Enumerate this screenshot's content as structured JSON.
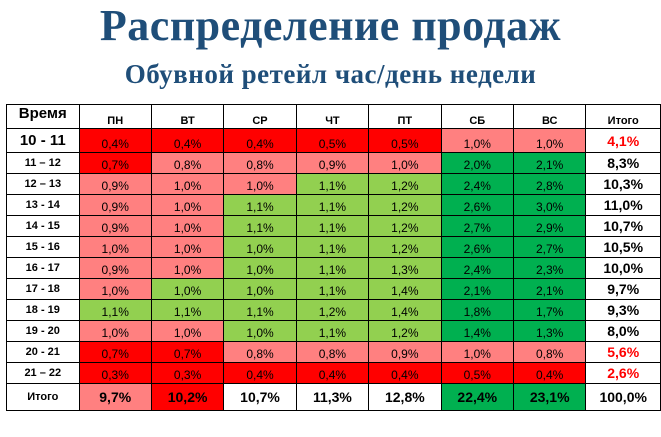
{
  "title": "Распределение продаж",
  "subtitle": "Обувной ретейл час/день недели",
  "table": {
    "corner": "Время",
    "headers": [
      "ПН",
      "ВТ",
      "СР",
      "ЧТ",
      "ПТ",
      "СБ",
      "ВС",
      "Итого"
    ],
    "rows": [
      {
        "label": "10 - 11",
        "values": [
          "0,4%",
          "0,4%",
          "0,4%",
          "0,5%",
          "0,5%",
          "1,0%",
          "1,0%"
        ],
        "colors": [
          "red",
          "red",
          "red",
          "red",
          "red",
          "pink",
          "pink"
        ],
        "total": "4,1%",
        "total_color": "red"
      },
      {
        "label": "11 – 12",
        "values": [
          "0,7%",
          "0,8%",
          "0,8%",
          "0,9%",
          "1,0%",
          "2,0%",
          "2,1%"
        ],
        "colors": [
          "red",
          "pink",
          "pink",
          "pink",
          "pink",
          "dgreen",
          "dgreen"
        ],
        "total": "8,3%",
        "total_color": "black"
      },
      {
        "label": "12 – 13",
        "values": [
          "0,9%",
          "1,0%",
          "1,0%",
          "1,1%",
          "1,2%",
          "2,4%",
          "2,8%"
        ],
        "colors": [
          "pink",
          "pink",
          "pink",
          "lgreen",
          "lgreen",
          "dgreen",
          "dgreen"
        ],
        "total": "10,3%",
        "total_color": "black"
      },
      {
        "label": "13 - 14",
        "values": [
          "0,9%",
          "1,0%",
          "1,1%",
          "1,1%",
          "1,2%",
          "2,6%",
          "3,0%"
        ],
        "colors": [
          "pink",
          "pink",
          "lgreen",
          "lgreen",
          "lgreen",
          "dgreen",
          "dgreen"
        ],
        "total": "11,0%",
        "total_color": "black"
      },
      {
        "label": "14 - 15",
        "values": [
          "0,9%",
          "1,0%",
          "1,1%",
          "1,1%",
          "1,2%",
          "2,7%",
          "2,9%"
        ],
        "colors": [
          "pink",
          "pink",
          "lgreen",
          "lgreen",
          "lgreen",
          "dgreen",
          "dgreen"
        ],
        "total": "10,7%",
        "total_color": "black"
      },
      {
        "label": "15 - 16",
        "values": [
          "1,0%",
          "1,0%",
          "1,0%",
          "1,1%",
          "1,2%",
          "2,6%",
          "2,7%"
        ],
        "colors": [
          "pink",
          "pink",
          "lgreen",
          "lgreen",
          "lgreen",
          "dgreen",
          "dgreen"
        ],
        "total": "10,5%",
        "total_color": "black"
      },
      {
        "label": "16 - 17",
        "values": [
          "0,9%",
          "1,0%",
          "1,0%",
          "1,1%",
          "1,3%",
          "2,4%",
          "2,3%"
        ],
        "colors": [
          "pink",
          "pink",
          "lgreen",
          "lgreen",
          "lgreen",
          "dgreen",
          "dgreen"
        ],
        "total": "10,0%",
        "total_color": "black"
      },
      {
        "label": "17 - 18",
        "values": [
          "1,0%",
          "1,0%",
          "1,0%",
          "1,1%",
          "1,4%",
          "2,1%",
          "2,1%"
        ],
        "colors": [
          "pink",
          "lgreen",
          "lgreen",
          "lgreen",
          "lgreen",
          "dgreen",
          "dgreen"
        ],
        "total": "9,7%",
        "total_color": "black"
      },
      {
        "label": "18 - 19",
        "values": [
          "1,1%",
          "1,1%",
          "1,1%",
          "1,2%",
          "1,4%",
          "1,8%",
          "1,7%"
        ],
        "colors": [
          "lgreen",
          "lgreen",
          "lgreen",
          "lgreen",
          "lgreen",
          "dgreen",
          "dgreen"
        ],
        "total": "9,3%",
        "total_color": "black"
      },
      {
        "label": "19 - 20",
        "values": [
          "1,0%",
          "1,0%",
          "1,0%",
          "1,1%",
          "1,2%",
          "1,4%",
          "1,3%"
        ],
        "colors": [
          "pink",
          "pink",
          "lgreen",
          "lgreen",
          "lgreen",
          "dgreen",
          "dgreen"
        ],
        "total": "8,0%",
        "total_color": "black"
      },
      {
        "label": "20 - 21",
        "values": [
          "0,7%",
          "0,7%",
          "0,8%",
          "0,8%",
          "0,9%",
          "1,0%",
          "0,8%"
        ],
        "colors": [
          "red",
          "red",
          "pink",
          "pink",
          "pink",
          "pink",
          "pink"
        ],
        "total": "5,6%",
        "total_color": "red"
      },
      {
        "label": "21 – 22",
        "values": [
          "0,3%",
          "0,3%",
          "0,4%",
          "0,4%",
          "0,4%",
          "0,5%",
          "0,4%"
        ],
        "colors": [
          "red",
          "red",
          "red",
          "red",
          "red",
          "red",
          "red"
        ],
        "total": "2,6%",
        "total_color": "red"
      }
    ],
    "footer": {
      "label": "Итого",
      "values": [
        "9,7%",
        "10,2%",
        "10,7%",
        "11,3%",
        "12,8%",
        "22,4%",
        "23,1%"
      ],
      "colors": [
        "pink",
        "red",
        "white",
        "white",
        "white",
        "dgreen",
        "dgreen"
      ],
      "total": "100,0%"
    }
  },
  "colors": {
    "red": "#ff0000",
    "pink": "#ff8080",
    "lgreen": "#92d050",
    "dgreen": "#00b050",
    "title": "#1f4e79"
  }
}
